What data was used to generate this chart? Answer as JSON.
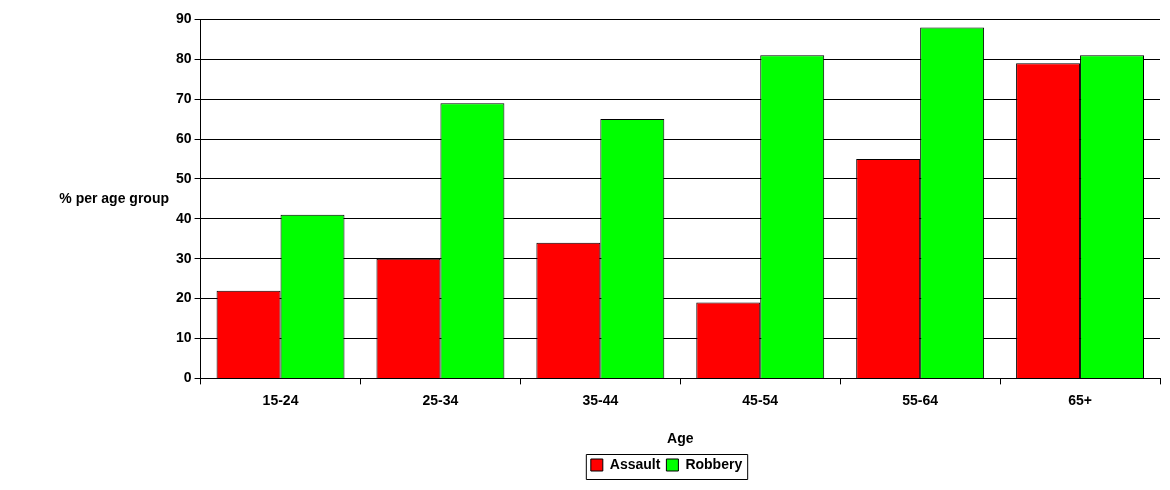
{
  "chart_data": {
    "type": "bar",
    "xlabel": "Age",
    "ylabel": "% per age group",
    "categories": [
      "15-24",
      "25-34",
      "35-44",
      "45-54",
      "55-64",
      "65+"
    ],
    "series": [
      {
        "name": "Assault",
        "color": "#ff0000",
        "values": [
          22,
          30,
          34,
          19,
          55,
          79
        ]
      },
      {
        "name": "Robbery",
        "color": "#00ff00",
        "values": [
          41,
          69,
          65,
          81,
          88,
          81
        ]
      }
    ],
    "ylim": [
      0,
      90
    ],
    "yticks": [
      0,
      10,
      20,
      30,
      40,
      50,
      60,
      70,
      80,
      90
    ],
    "grid": "y",
    "legend": "bottom"
  }
}
